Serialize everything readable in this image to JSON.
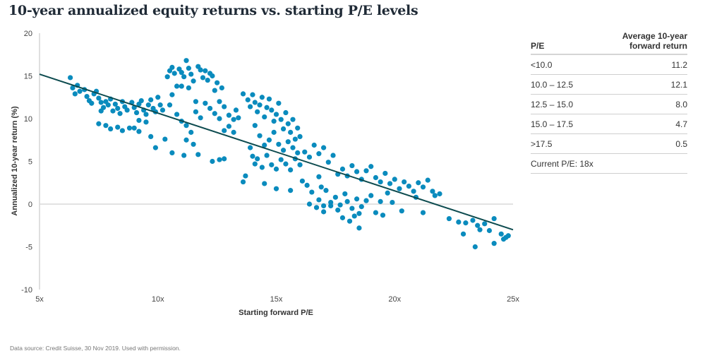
{
  "title": "10-year annualized equity returns vs. starting P/E levels",
  "footer": "Data source: Credit Suisse, 30 Nov 2019. Used with permission.",
  "colors": {
    "points": "#0a8bbd",
    "trendline": "#0d4b4f",
    "gridline": "#d9d9d9",
    "axis": "#bfbfbf"
  },
  "table": {
    "header": {
      "pe": "P/E",
      "return_line1": "Average 10-year",
      "return_line2": "forward return"
    },
    "rows": [
      {
        "pe": "<10.0",
        "value": "11.2"
      },
      {
        "pe": "10.0 – 12.5",
        "value": "12.1"
      },
      {
        "pe": "12.5 – 15.0",
        "value": "8.0"
      },
      {
        "pe": "15.0 – 17.5",
        "value": "4.7"
      },
      {
        "pe": ">17.5",
        "value": "0.5"
      }
    ],
    "note": "Current P/E: 18x"
  },
  "chart_data": {
    "type": "scatter",
    "title": "10-year annualized equity returns vs. starting P/E levels",
    "xlabel": "Starting forward P/E",
    "ylabel": "Annualized 10-year return (%)",
    "xlim": [
      5,
      25
    ],
    "ylim": [
      -10,
      20
    ],
    "xticks": [
      {
        "v": 5,
        "label": "5x"
      },
      {
        "v": 10,
        "label": "10x"
      },
      {
        "v": 15,
        "label": "15x"
      },
      {
        "v": 20,
        "label": "20x"
      },
      {
        "v": 25,
        "label": "25x"
      }
    ],
    "yticks": [
      {
        "v": 20,
        "label": "20"
      },
      {
        "v": 15,
        "label": "15"
      },
      {
        "v": 10,
        "label": "10"
      },
      {
        "v": 5,
        "label": "5"
      },
      {
        "v": 0,
        "label": "0"
      },
      {
        "v": -5,
        "label": "-5"
      },
      {
        "v": -10,
        "label": "-10"
      }
    ],
    "grid": "zero-line only",
    "trendline": {
      "x": [
        5,
        25
      ],
      "y": [
        15.2,
        -3.0
      ]
    },
    "series": [
      {
        "name": "Observations",
        "points": [
          [
            6.3,
            14.8
          ],
          [
            6.4,
            13.6
          ],
          [
            6.6,
            13.9
          ],
          [
            6.7,
            13.2
          ],
          [
            6.5,
            12.9
          ],
          [
            6.9,
            13.4
          ],
          [
            7.0,
            12.6
          ],
          [
            7.1,
            12.1
          ],
          [
            7.3,
            12.9
          ],
          [
            7.2,
            11.8
          ],
          [
            7.5,
            12.4
          ],
          [
            7.6,
            11.9
          ],
          [
            7.7,
            11.3
          ],
          [
            7.8,
            12.0
          ],
          [
            7.4,
            13.2
          ],
          [
            7.6,
            10.9
          ],
          [
            7.9,
            11.6
          ],
          [
            8.0,
            12.3
          ],
          [
            8.1,
            10.9
          ],
          [
            8.2,
            11.7
          ],
          [
            8.3,
            11.2
          ],
          [
            8.4,
            10.6
          ],
          [
            8.5,
            12.0
          ],
          [
            8.6,
            11.4
          ],
          [
            8.7,
            11.0
          ],
          [
            7.5,
            9.4
          ],
          [
            7.8,
            9.2
          ],
          [
            8.0,
            8.8
          ],
          [
            8.3,
            9.0
          ],
          [
            8.5,
            8.6
          ],
          [
            8.8,
            8.9
          ],
          [
            8.9,
            11.9
          ],
          [
            9.0,
            11.3
          ],
          [
            9.1,
            10.7
          ],
          [
            9.2,
            11.7
          ],
          [
            9.3,
            12.1
          ],
          [
            9.4,
            11.0
          ],
          [
            9.5,
            10.5
          ],
          [
            9.6,
            11.6
          ],
          [
            9.7,
            12.2
          ],
          [
            9.8,
            11.2
          ],
          [
            9.9,
            10.8
          ],
          [
            10.0,
            12.5
          ],
          [
            10.1,
            11.6
          ],
          [
            10.2,
            11.0
          ],
          [
            9.2,
            9.8
          ],
          [
            9.5,
            9.6
          ],
          [
            9.0,
            8.9
          ],
          [
            9.2,
            8.5
          ],
          [
            9.7,
            7.9
          ],
          [
            9.9,
            6.6
          ],
          [
            10.3,
            7.6
          ],
          [
            10.5,
            11.6
          ],
          [
            10.6,
            12.8
          ],
          [
            10.8,
            13.8
          ],
          [
            10.4,
            14.9
          ],
          [
            10.5,
            15.6
          ],
          [
            10.6,
            16.0
          ],
          [
            10.7,
            15.3
          ],
          [
            10.9,
            15.8
          ],
          [
            11.0,
            15.4
          ],
          [
            11.2,
            16.8
          ],
          [
            11.1,
            14.9
          ],
          [
            11.3,
            15.9
          ],
          [
            11.4,
            15.2
          ],
          [
            11.5,
            14.4
          ],
          [
            11.7,
            16.1
          ],
          [
            11.8,
            15.7
          ],
          [
            11.9,
            14.8
          ],
          [
            12.0,
            15.6
          ],
          [
            12.1,
            14.5
          ],
          [
            12.2,
            15.3
          ],
          [
            12.3,
            15.0
          ],
          [
            12.5,
            14.2
          ],
          [
            12.4,
            13.3
          ],
          [
            12.6,
            12.0
          ],
          [
            12.7,
            13.6
          ],
          [
            11.0,
            13.8
          ],
          [
            11.3,
            13.6
          ],
          [
            11.6,
            12.0
          ],
          [
            10.8,
            10.5
          ],
          [
            11.0,
            9.7
          ],
          [
            11.2,
            9.2
          ],
          [
            11.4,
            8.4
          ],
          [
            11.6,
            10.8
          ],
          [
            11.8,
            10.1
          ],
          [
            12.0,
            11.8
          ],
          [
            12.2,
            11.2
          ],
          [
            12.4,
            10.6
          ],
          [
            12.6,
            10.0
          ],
          [
            12.8,
            11.4
          ],
          [
            13.0,
            10.4
          ],
          [
            13.2,
            9.9
          ],
          [
            13.3,
            11.0
          ],
          [
            13.4,
            10.1
          ],
          [
            13.0,
            9.1
          ],
          [
            13.2,
            8.4
          ],
          [
            12.8,
            8.6
          ],
          [
            11.2,
            7.5
          ],
          [
            11.5,
            7.0
          ],
          [
            10.6,
            6.0
          ],
          [
            11.1,
            5.7
          ],
          [
            11.7,
            5.8
          ],
          [
            12.3,
            5.0
          ],
          [
            12.6,
            5.2
          ],
          [
            12.8,
            5.3
          ],
          [
            13.6,
            12.9
          ],
          [
            13.8,
            12.2
          ],
          [
            13.9,
            11.4
          ],
          [
            14.0,
            12.8
          ],
          [
            14.1,
            11.9
          ],
          [
            14.2,
            10.8
          ],
          [
            14.3,
            11.6
          ],
          [
            14.4,
            12.5
          ],
          [
            14.5,
            10.2
          ],
          [
            14.6,
            11.3
          ],
          [
            14.7,
            12.3
          ],
          [
            14.8,
            11.0
          ],
          [
            14.9,
            9.7
          ],
          [
            15.0,
            10.5
          ],
          [
            15.1,
            11.8
          ],
          [
            15.2,
            9.9
          ],
          [
            15.3,
            8.8
          ],
          [
            15.4,
            10.7
          ],
          [
            15.5,
            9.4
          ],
          [
            15.6,
            8.4
          ],
          [
            15.7,
            9.9
          ],
          [
            15.8,
            7.6
          ],
          [
            15.9,
            8.9
          ],
          [
            16.0,
            7.9
          ],
          [
            14.1,
            9.2
          ],
          [
            14.3,
            8.0
          ],
          [
            14.5,
            6.9
          ],
          [
            14.7,
            7.5
          ],
          [
            14.9,
            8.4
          ],
          [
            15.1,
            7.0
          ],
          [
            15.3,
            6.3
          ],
          [
            15.5,
            7.3
          ],
          [
            15.7,
            6.6
          ],
          [
            15.9,
            6.0
          ],
          [
            13.9,
            6.6
          ],
          [
            14.0,
            5.6
          ],
          [
            14.1,
            4.7
          ],
          [
            14.2,
            5.3
          ],
          [
            14.4,
            4.3
          ],
          [
            14.6,
            5.7
          ],
          [
            14.8,
            4.6
          ],
          [
            15.0,
            4.1
          ],
          [
            15.2,
            5.2
          ],
          [
            15.4,
            4.7
          ],
          [
            15.6,
            4.0
          ],
          [
            15.8,
            5.3
          ],
          [
            16.0,
            4.6
          ],
          [
            16.2,
            6.1
          ],
          [
            16.4,
            5.5
          ],
          [
            16.6,
            6.9
          ],
          [
            16.8,
            5.9
          ],
          [
            17.0,
            6.6
          ],
          [
            17.2,
            4.9
          ],
          [
            17.4,
            5.7
          ],
          [
            13.7,
            3.3
          ],
          [
            13.6,
            2.6
          ],
          [
            14.5,
            2.4
          ],
          [
            15.0,
            1.8
          ],
          [
            15.6,
            1.6
          ],
          [
            16.1,
            2.7
          ],
          [
            16.5,
            1.4
          ],
          [
            16.8,
            0.5
          ],
          [
            17.1,
            1.6
          ],
          [
            17.3,
            0.2
          ],
          [
            17.5,
            0.8
          ],
          [
            17.7,
            -0.1
          ],
          [
            17.9,
            1.2
          ],
          [
            18.0,
            0.3
          ],
          [
            18.2,
            -0.5
          ],
          [
            18.4,
            0.6
          ],
          [
            18.5,
            -1.1
          ],
          [
            18.6,
            -0.3
          ],
          [
            18.8,
            0.4
          ],
          [
            19.0,
            1.0
          ],
          [
            16.4,
            0.0
          ],
          [
            16.7,
            -0.4
          ],
          [
            17.0,
            -0.9
          ],
          [
            17.3,
            -0.2
          ],
          [
            17.6,
            -0.7
          ],
          [
            17.8,
            -1.6
          ],
          [
            18.1,
            -2.0
          ],
          [
            18.3,
            -1.4
          ],
          [
            18.5,
            -2.8
          ],
          [
            19.2,
            -1.0
          ],
          [
            19.4,
            0.3
          ],
          [
            17.6,
            3.5
          ],
          [
            17.8,
            4.1
          ],
          [
            18.0,
            3.3
          ],
          [
            18.2,
            4.5
          ],
          [
            18.4,
            3.8
          ],
          [
            18.6,
            2.9
          ],
          [
            18.8,
            3.9
          ],
          [
            19.0,
            4.4
          ],
          [
            19.2,
            3.1
          ],
          [
            19.4,
            2.6
          ],
          [
            19.6,
            3.6
          ],
          [
            19.8,
            2.4
          ],
          [
            20.0,
            2.9
          ],
          [
            20.2,
            1.8
          ],
          [
            20.4,
            2.6
          ],
          [
            20.6,
            2.1
          ],
          [
            20.8,
            1.5
          ],
          [
            21.0,
            2.5
          ],
          [
            21.2,
            2.0
          ],
          [
            21.4,
            2.8
          ],
          [
            21.6,
            1.5
          ],
          [
            21.7,
            1.0
          ],
          [
            21.9,
            1.2
          ],
          [
            21.2,
            -1.0
          ],
          [
            19.9,
            0.2
          ],
          [
            20.3,
            -0.8
          ],
          [
            22.3,
            -1.7
          ],
          [
            22.7,
            -2.1
          ],
          [
            23.0,
            -2.2
          ],
          [
            23.3,
            -1.9
          ],
          [
            23.5,
            -2.5
          ],
          [
            23.6,
            -3.0
          ],
          [
            23.8,
            -2.3
          ],
          [
            24.0,
            -3.1
          ],
          [
            24.2,
            -1.7
          ],
          [
            24.5,
            -3.5
          ],
          [
            24.6,
            -4.1
          ],
          [
            24.7,
            -3.9
          ],
          [
            24.8,
            -3.7
          ],
          [
            24.2,
            -4.6
          ],
          [
            23.4,
            -5.0
          ],
          [
            22.9,
            -3.5
          ],
          [
            20.9,
            0.8
          ],
          [
            19.5,
            -1.3
          ],
          [
            19.7,
            1.3
          ],
          [
            17.0,
            -0.2
          ],
          [
            16.8,
            3.2
          ],
          [
            16.3,
            2.2
          ],
          [
            16.9,
            2.0
          ]
        ]
      }
    ]
  }
}
